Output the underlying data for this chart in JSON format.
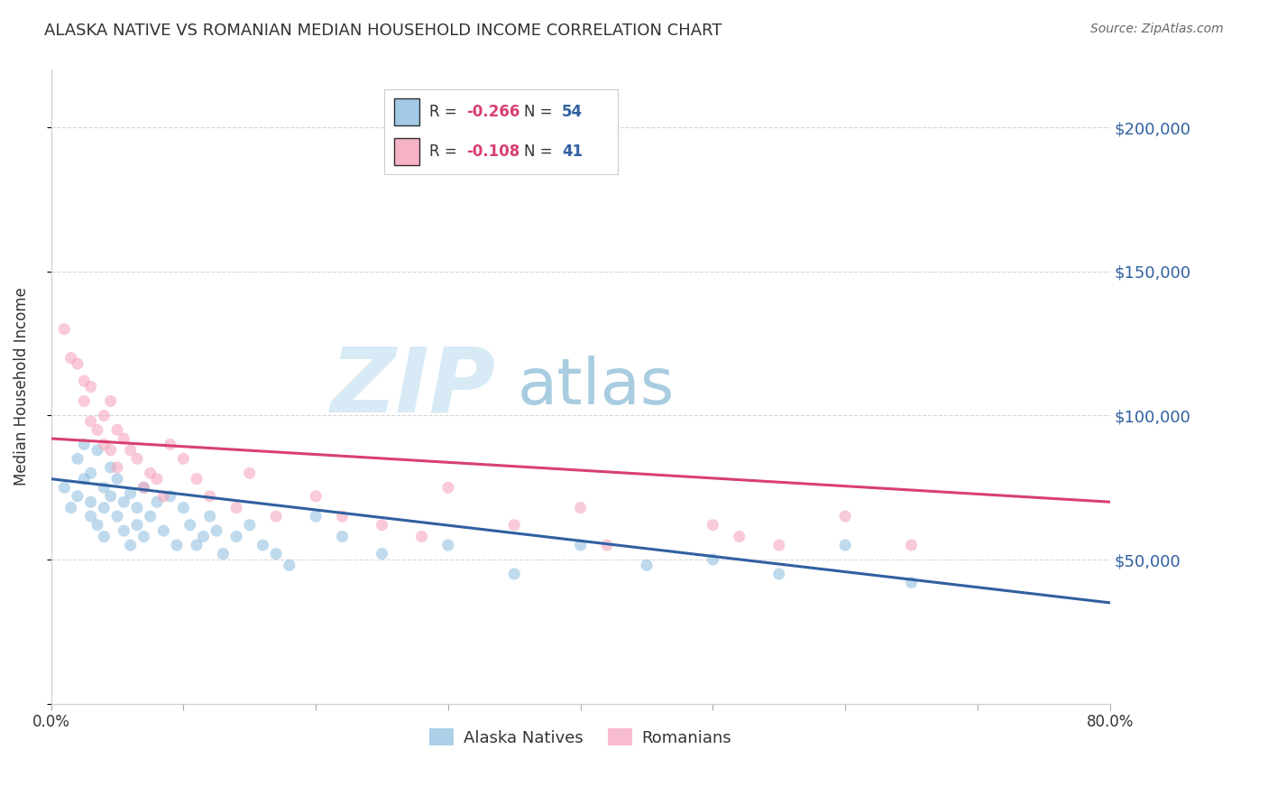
{
  "title": "ALASKA NATIVE VS ROMANIAN MEDIAN HOUSEHOLD INCOME CORRELATION CHART",
  "source": "Source: ZipAtlas.com",
  "ylabel": "Median Household Income",
  "xlim": [
    0.0,
    0.8
  ],
  "ylim": [
    0,
    220000
  ],
  "yticks": [
    0,
    50000,
    100000,
    150000,
    200000
  ],
  "ytick_labels": [
    "",
    "$50,000",
    "$100,000",
    "$150,000",
    "$200,000"
  ],
  "xtick_positions": [
    0.0,
    0.1,
    0.2,
    0.3,
    0.4,
    0.5,
    0.6,
    0.7,
    0.8
  ],
  "xtick_labels": [
    "0.0%",
    "",
    "",
    "",
    "",
    "",
    "",
    "",
    "80.0%"
  ],
  "alaska_color": "#8bbcdf",
  "romanian_color": "#f5a0b8",
  "alaska_line_color": "#3060a0",
  "romanian_line_color": "#d84070",
  "background_color": "#ffffff",
  "grid_color": "#cccccc",
  "title_color": "#333333",
  "source_color": "#666666",
  "legend_R_color": "#d84070",
  "legend_N_color": "#3060a0",
  "marker_size": 90,
  "marker_alpha": 0.55,
  "line_width": 2.2,
  "alaska_x": [
    0.01,
    0.015,
    0.02,
    0.02,
    0.025,
    0.025,
    0.03,
    0.03,
    0.03,
    0.035,
    0.035,
    0.04,
    0.04,
    0.04,
    0.045,
    0.045,
    0.05,
    0.05,
    0.055,
    0.055,
    0.06,
    0.06,
    0.065,
    0.065,
    0.07,
    0.07,
    0.075,
    0.08,
    0.085,
    0.09,
    0.095,
    0.1,
    0.105,
    0.11,
    0.115,
    0.12,
    0.125,
    0.13,
    0.14,
    0.15,
    0.16,
    0.17,
    0.18,
    0.2,
    0.22,
    0.25,
    0.3,
    0.35,
    0.4,
    0.45,
    0.5,
    0.55,
    0.6,
    0.65
  ],
  "alaska_y": [
    75000,
    68000,
    85000,
    72000,
    90000,
    78000,
    65000,
    80000,
    70000,
    88000,
    62000,
    75000,
    68000,
    58000,
    82000,
    72000,
    65000,
    78000,
    70000,
    60000,
    73000,
    55000,
    68000,
    62000,
    75000,
    58000,
    65000,
    70000,
    60000,
    72000,
    55000,
    68000,
    62000,
    55000,
    58000,
    65000,
    60000,
    52000,
    58000,
    62000,
    55000,
    52000,
    48000,
    65000,
    58000,
    52000,
    55000,
    45000,
    55000,
    48000,
    50000,
    45000,
    55000,
    42000
  ],
  "romanian_x": [
    0.01,
    0.015,
    0.02,
    0.025,
    0.025,
    0.03,
    0.03,
    0.035,
    0.04,
    0.04,
    0.045,
    0.045,
    0.05,
    0.05,
    0.055,
    0.06,
    0.065,
    0.07,
    0.075,
    0.08,
    0.085,
    0.09,
    0.1,
    0.11,
    0.12,
    0.14,
    0.15,
    0.17,
    0.2,
    0.22,
    0.25,
    0.28,
    0.3,
    0.35,
    0.4,
    0.42,
    0.5,
    0.52,
    0.55,
    0.6,
    0.65
  ],
  "romanian_y": [
    130000,
    120000,
    118000,
    112000,
    105000,
    98000,
    110000,
    95000,
    100000,
    90000,
    105000,
    88000,
    95000,
    82000,
    92000,
    88000,
    85000,
    75000,
    80000,
    78000,
    72000,
    90000,
    85000,
    78000,
    72000,
    68000,
    80000,
    65000,
    72000,
    65000,
    62000,
    58000,
    75000,
    62000,
    68000,
    55000,
    62000,
    58000,
    55000,
    65000,
    55000
  ],
  "alaska_line_x0": 0.0,
  "alaska_line_y0": 78000,
  "alaska_line_x1": 0.8,
  "alaska_line_y1": 35000,
  "romanian_line_x0": 0.0,
  "romanian_line_y0": 92000,
  "romanian_line_x1": 0.8,
  "romanian_line_y1": 70000
}
